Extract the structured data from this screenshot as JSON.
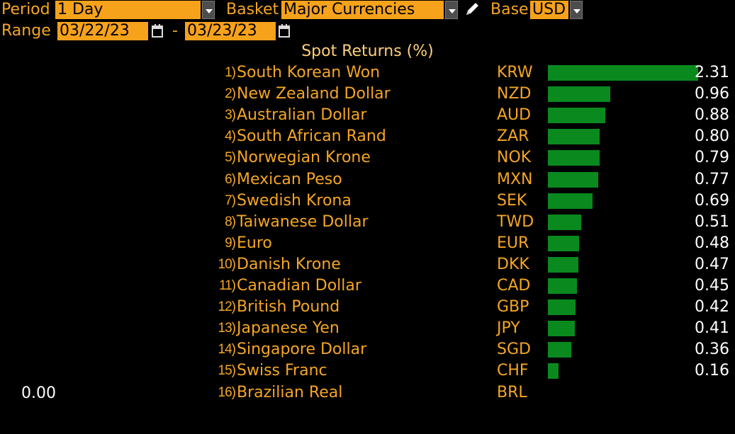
{
  "toolbar": {
    "period_label": "Period",
    "period_value": "1 Day",
    "basket_label": "Basket",
    "basket_value": "Major Currencies",
    "base_label": "Base",
    "base_value": "USD",
    "range_label": "Range",
    "range_start": "03/22/23",
    "range_sep": "-",
    "range_end": "03/23/23",
    "edit_icon": "pencil-icon",
    "calendar_icon": "calendar-icon"
  },
  "title": "Spot Returns (%)",
  "colors": {
    "accent": "#f5a623",
    "field_bg": "#f7a21b",
    "bar": "#0a8a1e",
    "value": "#ffffff"
  },
  "axis_zero_label": "0.00",
  "chart_data": {
    "type": "bar",
    "title": "Spot Returns (%)",
    "max_value": 2.31,
    "rows": [
      {
        "rank": "1)",
        "name": "South Korean Won",
        "code": "KRW",
        "value": 2.31,
        "label": "2.31"
      },
      {
        "rank": "2)",
        "name": "New Zealand Dollar",
        "code": "NZD",
        "value": 0.96,
        "label": "0.96"
      },
      {
        "rank": "3)",
        "name": "Australian Dollar",
        "code": "AUD",
        "value": 0.88,
        "label": "0.88"
      },
      {
        "rank": "4)",
        "name": "South African Rand",
        "code": "ZAR",
        "value": 0.8,
        "label": "0.80"
      },
      {
        "rank": "5)",
        "name": "Norwegian Krone",
        "code": "NOK",
        "value": 0.79,
        "label": "0.79"
      },
      {
        "rank": "6)",
        "name": "Mexican Peso",
        "code": "MXN",
        "value": 0.77,
        "label": "0.77"
      },
      {
        "rank": "7)",
        "name": "Swedish Krona",
        "code": "SEK",
        "value": 0.69,
        "label": "0.69"
      },
      {
        "rank": "8)",
        "name": "Taiwanese Dollar",
        "code": "TWD",
        "value": 0.51,
        "label": "0.51"
      },
      {
        "rank": "9)",
        "name": "Euro",
        "code": "EUR",
        "value": 0.48,
        "label": "0.48"
      },
      {
        "rank": "10)",
        "name": "Danish Krone",
        "code": "DKK",
        "value": 0.47,
        "label": "0.47"
      },
      {
        "rank": "11)",
        "name": "Canadian Dollar",
        "code": "CAD",
        "value": 0.45,
        "label": "0.45"
      },
      {
        "rank": "12)",
        "name": "British Pound",
        "code": "GBP",
        "value": 0.42,
        "label": "0.42"
      },
      {
        "rank": "13)",
        "name": "Japanese Yen",
        "code": "JPY",
        "value": 0.41,
        "label": "0.41"
      },
      {
        "rank": "14)",
        "name": "Singapore Dollar",
        "code": "SGD",
        "value": 0.36,
        "label": "0.36"
      },
      {
        "rank": "15)",
        "name": "Swiss Franc",
        "code": "CHF",
        "value": 0.16,
        "label": "0.16"
      },
      {
        "rank": "16)",
        "name": "Brazilian Real",
        "code": "BRL",
        "value": 0.0,
        "label": ""
      }
    ]
  }
}
